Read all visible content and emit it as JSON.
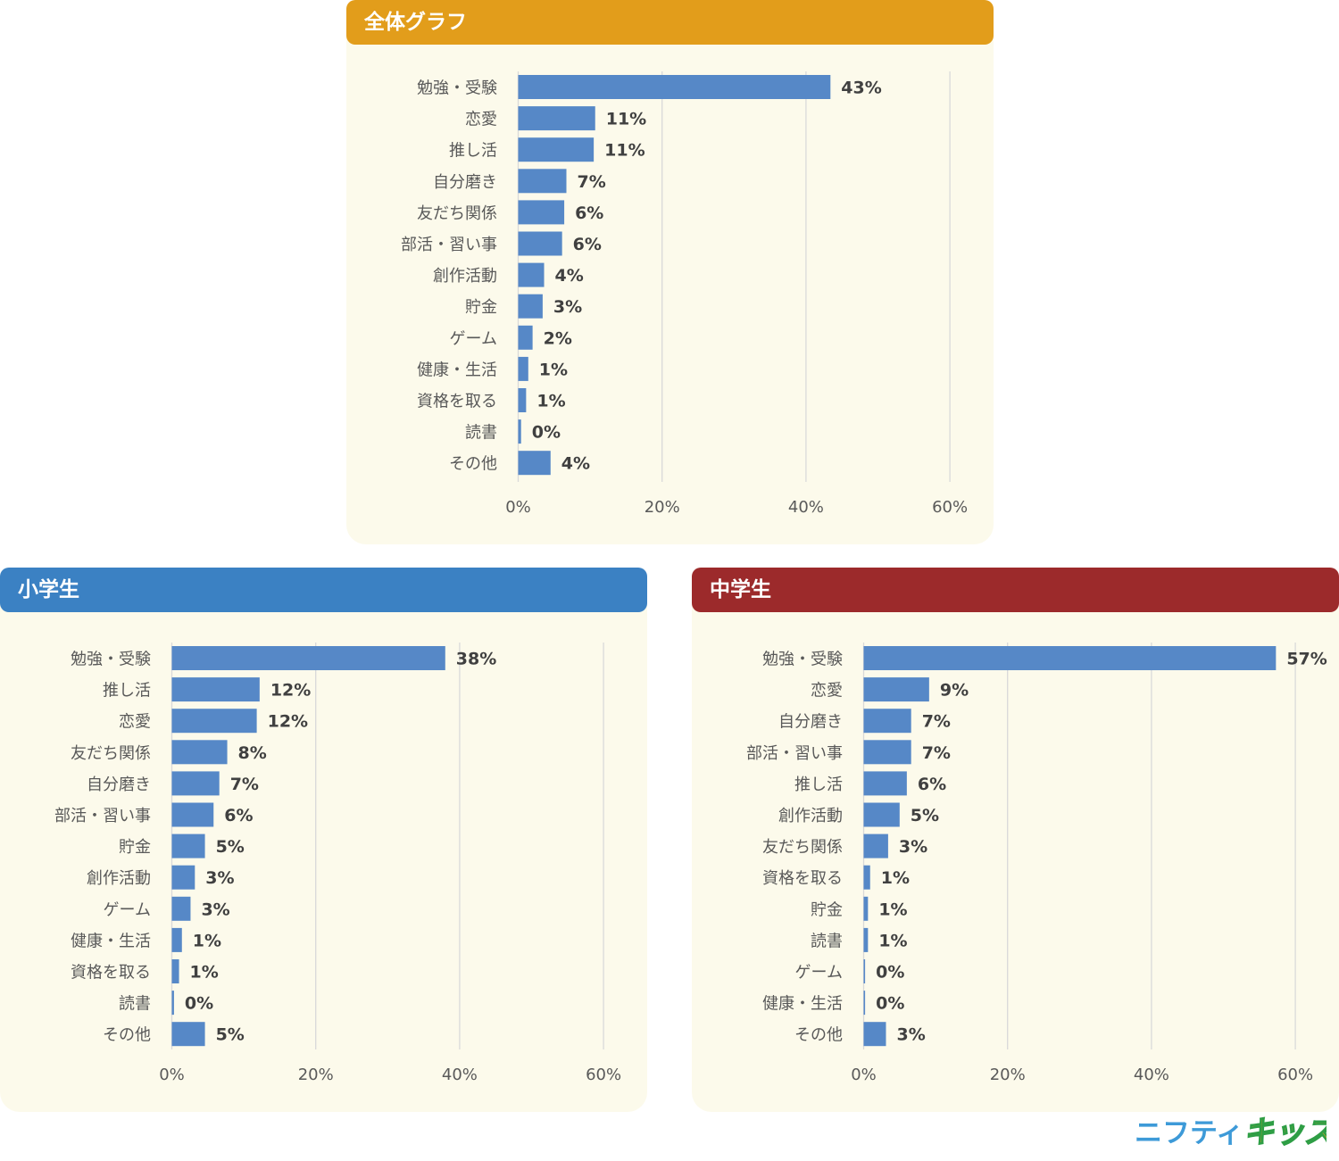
{
  "colors": {
    "panel_background": "#FCFAEB",
    "gridline": "#D9D9D9",
    "bar": "#5688C7"
  },
  "chart_data": [
    {
      "type": "bar",
      "orientation": "horizontal",
      "title": "全体グラフ",
      "header_color": "#E29D1B",
      "categories": [
        "勉強・受験",
        "恋愛",
        "推し活",
        "自分磨き",
        "友だち関係",
        "部活・習い事",
        "創作活動",
        "貯金",
        "ゲーム",
        "健康・生活",
        "資格を取る",
        "読書",
        "その他"
      ],
      "values": [
        43.4,
        10.7,
        10.5,
        6.7,
        6.4,
        6.1,
        3.6,
        3.4,
        2.0,
        1.4,
        1.1,
        0.4,
        4.5
      ],
      "data_labels": [
        "43%",
        "11%",
        "11%",
        "7%",
        "6%",
        "6%",
        "4%",
        "3%",
        "2%",
        "1%",
        "1%",
        "0%",
        "4%"
      ],
      "xlim": [
        0,
        60
      ],
      "x_ticks": [
        0,
        20,
        40,
        60
      ],
      "x_tick_labels": [
        "0%",
        "20%",
        "40%",
        "60%"
      ],
      "grid": true
    },
    {
      "type": "bar",
      "orientation": "horizontal",
      "title": "小学生",
      "header_color": "#3B81C3",
      "categories": [
        "勉強・受験",
        "推し活",
        "恋愛",
        "友だち関係",
        "自分磨き",
        "部活・習い事",
        "貯金",
        "創作活動",
        "ゲーム",
        "健康・生活",
        "資格を取る",
        "読書",
        "その他"
      ],
      "values": [
        38.0,
        12.2,
        11.8,
        7.7,
        6.6,
        5.8,
        4.6,
        3.2,
        2.6,
        1.4,
        1.0,
        0.3,
        4.6
      ],
      "data_labels": [
        "38%",
        "12%",
        "12%",
        "8%",
        "7%",
        "6%",
        "5%",
        "3%",
        "3%",
        "1%",
        "1%",
        "0%",
        "5%"
      ],
      "xlim": [
        0,
        60
      ],
      "x_ticks": [
        0,
        20,
        40,
        60
      ],
      "x_tick_labels": [
        "0%",
        "20%",
        "40%",
        "60%"
      ],
      "grid": true
    },
    {
      "type": "bar",
      "orientation": "horizontal",
      "title": "中学生",
      "header_color": "#9C2A2B",
      "categories": [
        "勉強・受験",
        "恋愛",
        "自分磨き",
        "部活・習い事",
        "推し活",
        "創作活動",
        "友だち関係",
        "資格を取る",
        "貯金",
        "読書",
        "ゲーム",
        "健康・生活",
        "その他"
      ],
      "values": [
        57.3,
        9.1,
        6.6,
        6.6,
        6.0,
        5.0,
        3.4,
        0.9,
        0.6,
        0.6,
        0.2,
        0.2,
        3.1
      ],
      "data_labels": [
        "57%",
        "9%",
        "7%",
        "7%",
        "6%",
        "5%",
        "3%",
        "1%",
        "1%",
        "1%",
        "0%",
        "0%",
        "3%"
      ],
      "xlim": [
        0,
        60
      ],
      "x_ticks": [
        0,
        20,
        40,
        60
      ],
      "x_tick_labels": [
        "0%",
        "20%",
        "40%",
        "60%"
      ],
      "grid": true
    }
  ],
  "logo": {
    "part1": "ニフティ",
    "part2": "キッズ"
  }
}
